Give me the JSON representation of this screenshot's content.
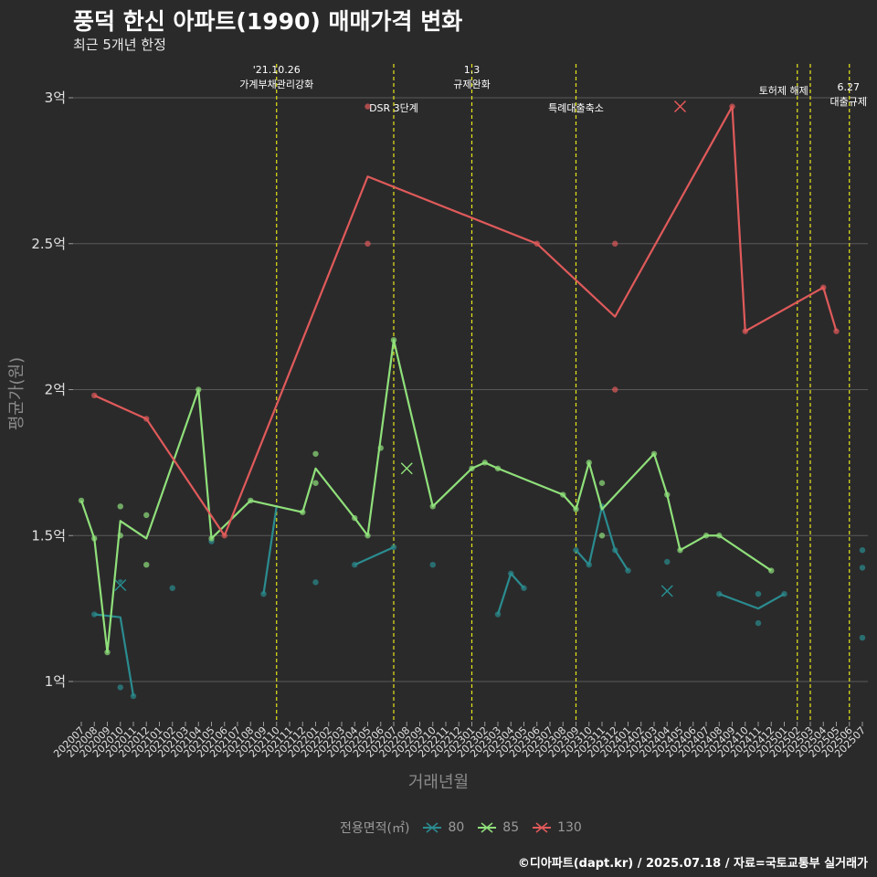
{
  "header": {
    "title": "풍덕 한신 아파트(1990) 매매가격 변화",
    "subtitle": "최근 5개년 한정"
  },
  "legend": {
    "title": "전용면적(㎡)"
  },
  "caption": "©디아파트(dapt.kr) / 2025.07.18 / 자료=국토교통부 실거래가",
  "colors": {
    "background": "#2b2a2b",
    "grid": "#5a595a",
    "event_line": "#e6e619",
    "s80": "#2a8c8f",
    "s85": "#8fe07a",
    "s130": "#e05a5a"
  },
  "chart_data": {
    "type": "line",
    "title": "풍덕 한신 아파트(1990) 매매가격 변화",
    "subtitle": "최근 5개년 한정",
    "xlabel": "거래년월",
    "ylabel": "평균가(원)",
    "ylim": [
      0.85,
      3.1
    ],
    "y_ticks": [
      {
        "value": 1.0,
        "label": "1억"
      },
      {
        "value": 1.5,
        "label": "1.5억"
      },
      {
        "value": 2.0,
        "label": "2억"
      },
      {
        "value": 2.5,
        "label": "2.5억"
      },
      {
        "value": 3.0,
        "label": "3억"
      }
    ],
    "grid": true,
    "legend_position": "bottom",
    "categories": [
      "202007",
      "202008",
      "202009",
      "202010",
      "202011",
      "202012",
      "202101",
      "202102",
      "202103",
      "202104",
      "202105",
      "202106",
      "202107",
      "202108",
      "202109",
      "202110",
      "202111",
      "202112",
      "202201",
      "202202",
      "202203",
      "202204",
      "202205",
      "202206",
      "202207",
      "202208",
      "202209",
      "202210",
      "202211",
      "202212",
      "202301",
      "202302",
      "202303",
      "202304",
      "202305",
      "202306",
      "202307",
      "202308",
      "202309",
      "202310",
      "202311",
      "202312",
      "202401",
      "202402",
      "202403",
      "202404",
      "202405",
      "202406",
      "202407",
      "202408",
      "202409",
      "202410",
      "202411",
      "202412",
      "202501",
      "202502",
      "202503",
      "202504",
      "202505",
      "202506",
      "202507"
    ],
    "events": [
      {
        "x": "202110",
        "label": "'21.10.26\n가계부채관리강화"
      },
      {
        "x": "202207",
        "label": "DSR 3단계"
      },
      {
        "x": "202301",
        "label": "1.3\n규제완화"
      },
      {
        "x": "202309",
        "label": "특례대출축소"
      },
      {
        "x": "202502",
        "label": "토허제 해제"
      },
      {
        "x": "202503",
        "label": ""
      },
      {
        "x": "202506",
        "label": "6.27\n대출규제"
      }
    ],
    "series": [
      {
        "name": "80",
        "color": "#2a8c8f",
        "line": [
          [
            "202008",
            1.23
          ],
          [
            "202010",
            1.22
          ],
          [
            "202011",
            0.95
          ],
          null,
          [
            "202109",
            1.3
          ],
          [
            "202110",
            1.6
          ],
          null,
          [
            "202204",
            1.4
          ],
          [
            "202207",
            1.46
          ],
          null,
          [
            "202303",
            1.23
          ],
          [
            "202304",
            1.37
          ],
          [
            "202305",
            1.32
          ],
          null,
          [
            "202309",
            1.45
          ],
          [
            "202310",
            1.4
          ],
          [
            "202311",
            1.6
          ],
          [
            "202312",
            1.45
          ],
          [
            "202401",
            1.38
          ],
          null,
          [
            "202408",
            1.3
          ],
          [
            "202411",
            1.25
          ],
          [
            "202501",
            1.3
          ]
        ],
        "points": [
          [
            "202008",
            1.23
          ],
          [
            "202010",
            1.34
          ],
          [
            "202010",
            0.98
          ],
          [
            "202011",
            0.95
          ],
          [
            "202102",
            1.32
          ],
          [
            "202105",
            1.48
          ],
          [
            "202109",
            1.3
          ],
          [
            "202201",
            1.34
          ],
          [
            "202204",
            1.4
          ],
          [
            "202207",
            1.46
          ],
          [
            "202210",
            1.4
          ],
          [
            "202303",
            1.23
          ],
          [
            "202304",
            1.37
          ],
          [
            "202305",
            1.32
          ],
          [
            "202309",
            1.45
          ],
          [
            "202310",
            1.4
          ],
          [
            "202311",
            1.6
          ],
          [
            "202312",
            1.45
          ],
          [
            "202401",
            1.38
          ],
          [
            "202404",
            1.41
          ],
          [
            "202408",
            1.3
          ],
          [
            "202411",
            1.3
          ],
          [
            "202411",
            1.2
          ],
          [
            "202501",
            1.3
          ],
          [
            "202507",
            1.45
          ],
          [
            "202507",
            1.39
          ],
          [
            "202507",
            1.15
          ]
        ],
        "latest": [
          "202404",
          1.31
        ],
        "extra_x": [
          [
            "202010",
            1.33
          ]
        ]
      },
      {
        "name": "85",
        "color": "#8fe07a",
        "line": [
          [
            "202007",
            1.62
          ],
          [
            "202008",
            1.49
          ],
          [
            "202009",
            1.1
          ],
          [
            "202010",
            1.55
          ],
          [
            "202012",
            1.49
          ],
          [
            "202104",
            2.0
          ],
          [
            "202105",
            1.49
          ],
          [
            "202108",
            1.62
          ],
          [
            "202112",
            1.58
          ],
          [
            "202201",
            1.73
          ],
          [
            "202204",
            1.56
          ],
          [
            "202205",
            1.5
          ],
          [
            "202207",
            2.17
          ],
          [
            "202210",
            1.6
          ],
          [
            "202301",
            1.73
          ],
          [
            "202302",
            1.75
          ],
          [
            "202303",
            1.73
          ],
          [
            "202308",
            1.64
          ],
          [
            "202309",
            1.59
          ],
          [
            "202310",
            1.75
          ],
          [
            "202311",
            1.59
          ],
          [
            "202403",
            1.78
          ],
          [
            "202404",
            1.64
          ],
          [
            "202405",
            1.45
          ],
          [
            "202407",
            1.5
          ],
          [
            "202408",
            1.5
          ],
          [
            "202412",
            1.38
          ]
        ],
        "points": [
          [
            "202007",
            1.62
          ],
          [
            "202008",
            1.49
          ],
          [
            "202009",
            1.1
          ],
          [
            "202010",
            1.6
          ],
          [
            "202010",
            1.5
          ],
          [
            "202012",
            1.57
          ],
          [
            "202012",
            1.4
          ],
          [
            "202104",
            2.0
          ],
          [
            "202105",
            1.49
          ],
          [
            "202108",
            1.62
          ],
          [
            "202112",
            1.58
          ],
          [
            "202201",
            1.78
          ],
          [
            "202201",
            1.68
          ],
          [
            "202204",
            1.56
          ],
          [
            "202205",
            1.5
          ],
          [
            "202206",
            1.8
          ],
          [
            "202207",
            2.17
          ],
          [
            "202210",
            1.6
          ],
          [
            "202301",
            1.73
          ],
          [
            "202302",
            1.75
          ],
          [
            "202303",
            1.73
          ],
          [
            "202308",
            1.64
          ],
          [
            "202309",
            1.59
          ],
          [
            "202310",
            1.75
          ],
          [
            "202311",
            1.68
          ],
          [
            "202311",
            1.5
          ],
          [
            "202403",
            1.78
          ],
          [
            "202404",
            1.64
          ],
          [
            "202405",
            1.45
          ],
          [
            "202407",
            1.5
          ],
          [
            "202408",
            1.5
          ],
          [
            "202412",
            1.38
          ]
        ],
        "latest": [
          "202208",
          1.73
        ]
      },
      {
        "name": "130",
        "color": "#e05a5a",
        "line": [
          [
            "202008",
            1.98
          ],
          [
            "202012",
            1.9
          ],
          [
            "202106",
            1.5
          ],
          [
            "202205",
            2.73
          ],
          [
            "202306",
            2.5
          ],
          [
            "202312",
            2.25
          ],
          [
            "202409",
            2.97
          ],
          [
            "202410",
            2.2
          ],
          [
            "202504",
            2.35
          ],
          [
            "202505",
            2.2
          ]
        ],
        "points": [
          [
            "202008",
            1.98
          ],
          [
            "202012",
            1.9
          ],
          [
            "202106",
            1.5
          ],
          [
            "202205",
            2.97
          ],
          [
            "202205",
            2.5
          ],
          [
            "202306",
            2.5
          ],
          [
            "202312",
            2.5
          ],
          [
            "202312",
            2.0
          ],
          [
            "202409",
            2.97
          ],
          [
            "202410",
            2.2
          ],
          [
            "202504",
            2.35
          ],
          [
            "202505",
            2.2
          ]
        ],
        "latest": [
          "202405",
          2.97
        ]
      }
    ]
  }
}
